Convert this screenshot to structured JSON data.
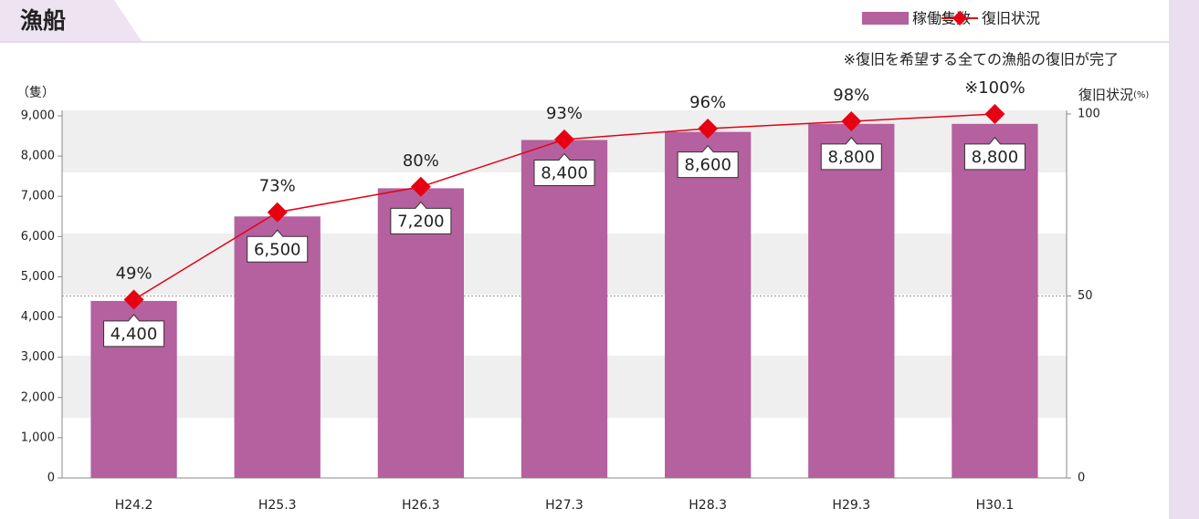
{
  "chart_data": {
    "type": "bar_line",
    "title": "漁船",
    "note": "※復旧を希望する全ての漁船の復旧が完了",
    "y_label": "（隻）",
    "y2_label": "復旧状況",
    "y2_unit": "(%)",
    "categories": [
      "H24.2",
      "H25.3",
      "H26.3",
      "H27.3",
      "H28.3",
      "H29.3",
      "H30.1"
    ],
    "series": [
      {
        "name": "稼働隻数",
        "color": "#b5609f",
        "type": "bar",
        "values": [
          4400,
          6500,
          7200,
          8400,
          8600,
          8800,
          8800
        ],
        "value_labels": [
          "4,400",
          "6,500",
          "7,200",
          "8,400",
          "8,600",
          "8,800",
          "8,800"
        ]
      },
      {
        "name": "復旧状況",
        "color": "#e60012",
        "type": "line",
        "axis": "y2",
        "values": [
          49,
          73,
          80,
          93,
          96,
          98,
          100
        ],
        "value_labels": [
          "49%",
          "73%",
          "80%",
          "93%",
          "96%",
          "98%",
          "※100%"
        ]
      }
    ],
    "ylim": [
      0,
      9000
    ],
    "yticks": [
      0,
      {
        "value": 1000,
        "label": "1,000"
      },
      {
        "value": 2000,
        "label": "2,000"
      },
      {
        "value": 3000,
        "label": "3,000"
      },
      {
        "value": 4000,
        "label": "4,000"
      },
      {
        "value": 5000,
        "label": "5,000"
      },
      {
        "value": 6000,
        "label": "6,000"
      },
      {
        "value": 7000,
        "label": "7,000"
      },
      {
        "value": 8000,
        "label": "8,000"
      },
      {
        "value": 9000,
        "label": "9,000"
      }
    ],
    "y2lim": [
      0,
      100
    ],
    "y2ticks": [
      0,
      50,
      100
    ]
  }
}
